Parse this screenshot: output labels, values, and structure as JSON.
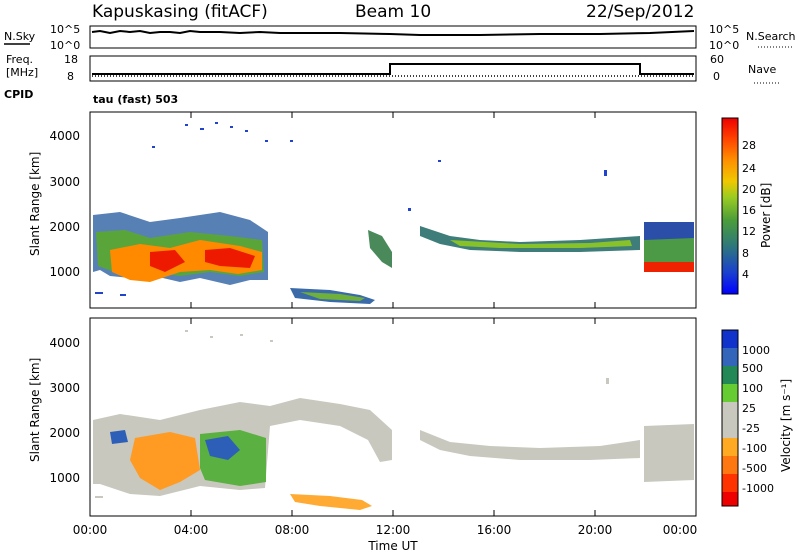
{
  "header": {
    "station": "Kapuskasing (fitACF)",
    "beam": "Beam 10",
    "date": "22/Sep/2012"
  },
  "top_panels": {
    "nsky_label": "N.Sky",
    "nsearch_label": "N.Search",
    "nsky_ticks": [
      "10^5",
      "10^0"
    ],
    "nsearch_ticks": [
      "10^5",
      "10^0"
    ],
    "freq_label": "Freq.",
    "freq_unit": "[MHz]",
    "freq_ticks": [
      "18",
      "8"
    ],
    "nave_label": "Nave",
    "nave_ticks": [
      "60",
      "0"
    ],
    "cpid_label": "CPID",
    "cpid_text": "tau (fast) 503"
  },
  "chart_data": [
    {
      "type": "heatmap",
      "title": "",
      "xlabel": "",
      "ylabel": "Slant Range [km]",
      "x_ticks": [
        "00:00",
        "04:00",
        "08:00",
        "12:00",
        "16:00",
        "20:00",
        "00:00"
      ],
      "y_ticks": [
        1000,
        2000,
        3000,
        4000
      ],
      "ylim": [
        180,
        4600
      ],
      "colorbar": {
        "label": "Power [dB]",
        "ticks": [
          "4",
          "8",
          "12",
          "16",
          "20",
          "24",
          "28"
        ],
        "colors": [
          "#0000ff",
          "#2255cc",
          "#3a8a66",
          "#55aa33",
          "#99cc22",
          "#eecc00",
          "#ff9900",
          "#ff5500",
          "#ee1111",
          "#ee0000"
        ]
      }
    },
    {
      "type": "heatmap",
      "title": "",
      "xlabel": "Time UT",
      "ylabel": "Slant Range [km]",
      "x_ticks": [
        "00:00",
        "04:00",
        "08:00",
        "12:00",
        "16:00",
        "20:00",
        "00:00"
      ],
      "y_ticks": [
        1000,
        2000,
        3000,
        4000
      ],
      "ylim": [
        180,
        4600
      ],
      "colorbar": {
        "label": "Velocity [m s⁻¹]",
        "ticks": [
          "1000",
          "500",
          "100",
          "25",
          "-25",
          "-100",
          "-500",
          "-1000"
        ],
        "colors": [
          "#1133cc",
          "#3366bb",
          "#228855",
          "#66cc33",
          "#c8c8be",
          "#c8c8be",
          "#ffaa22",
          "#ff7711",
          "#ff3300",
          "#ee0000"
        ]
      }
    }
  ]
}
